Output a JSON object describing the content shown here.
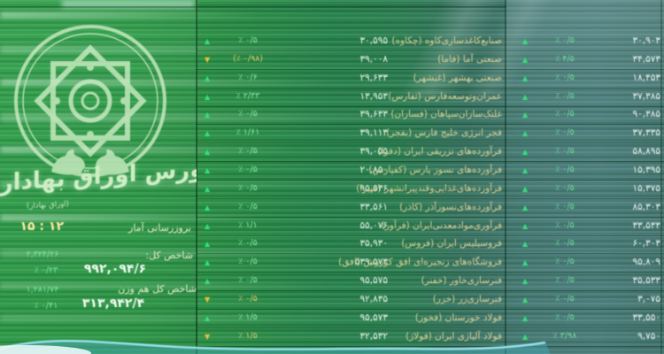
{
  "brand": {
    "title": "بورس اوراق بهادار",
    "subtitle": "(اوراق بهادار)"
  },
  "stats": {
    "update_label": "بروزرسانی آمار",
    "time": "۱۲ : ۱۵",
    "indices": [
      {
        "label": "شاخص کل:",
        "value": "۹۹۲,۰۹۴/۶",
        "change": "۲,۳۲۴/۲۶",
        "percent": "۰/۲۳ ٪"
      },
      {
        "label": "شاخص کل هم وزن",
        "value": "۳۱۳,۹۴۲/۴",
        "change": "۱,۲۸۱/۷۴",
        "percent": "۰/۴۱ ٪"
      }
    ]
  },
  "icons": {
    "up": "▲",
    "down": "▼"
  },
  "colors": {
    "up_green": "#35e07c",
    "down_amber": "#e8c23c",
    "board_green": "#2b8f46",
    "board_teal": "#477a74",
    "index_change_green": "#7de8a2",
    "time_yellow": "#ffeaa0",
    "name_text": "#d9cf96",
    "wave_cyan": "#9ae0ea"
  },
  "table": {
    "rows": [
      {
        "name": "صنایع‌کاغذسازی‌کاوه (چکاوه)",
        "left": {
          "dir": "up",
          "percent": "۰/۵ ٪",
          "price": "۳۰,۵۹۵"
        },
        "right": {
          "dir": "up",
          "percent": "۰/۵ ٪",
          "price": "۳۰,۹۰۳"
        }
      },
      {
        "name": "صنعتی آما (فاما)",
        "left": {
          "dir": "down",
          "percent": "(۰/۹۸ ٪)",
          "price": "۳۹,۰۰۸"
        },
        "right": {
          "dir": "up",
          "percent": "۴/۵ ٪",
          "price": "۳۴,۵۷۳"
        }
      },
      {
        "name": "صنعتی بهشهر (غبشهر)",
        "left": {
          "dir": "up",
          "percent": "۰/۶ ٪",
          "price": "۲۹,۶۳۳"
        },
        "right": {
          "dir": "up",
          "percent": "۰/۵ ٪",
          "price": "۱۸,۴۵۳"
        }
      },
      {
        "name": "عمران‌وتوسعه‌فارس (ثفارس)",
        "left": {
          "dir": "up",
          "percent": "۲/۳۳ ٪",
          "price": "۱۳,۹۵۳"
        },
        "right": {
          "dir": "up",
          "percent": "۰/۵ ٪",
          "price": "۳۷,۳۸۵"
        }
      },
      {
        "name": "غلتک‌سازان‌سپاهان (فسازان)",
        "left": {
          "dir": "up",
          "percent": "۰/۵ ٪",
          "price": "۳۹,۶۳۳"
        },
        "right": {
          "dir": "up",
          "percent": "۰/۵ ٪",
          "price": "۹۰,۳۸۵"
        }
      },
      {
        "name": "فجر انرژی خلیج فارس (بفجر)",
        "left": {
          "dir": "up",
          "percent": "۱/۶۱ ٪",
          "price": "۳۹,۱۱۳"
        },
        "right": {
          "dir": "up",
          "percent": "۰/۵ ٪",
          "price": "۳۷,۳۳۵"
        }
      },
      {
        "name": "فرآورده‌های تزریقی ایران (دفرا)",
        "left": {
          "dir": "up",
          "percent": "۰/۵ ٪",
          "price": "۳۹,۰۵۵"
        },
        "right": {
          "dir": "up",
          "percent": "۰/۵ ٪",
          "price": "۵۸,۸۹۵"
        }
      },
      {
        "name": "فرآورده‌های نسوز پارس (کفپارس)",
        "left": {
          "dir": "up",
          "percent": "۰/۵ ٪",
          "price": "۲۰,۸۵۰"
        },
        "right": {
          "dir": "up",
          "percent": "۰/۵ ٪",
          "price": "۱۵,۳۹۵"
        }
      },
      {
        "name": "فرآورده‌های‌غذایی‌وقندپیرانشهر (قپیرا)",
        "left": {
          "dir": "up",
          "percent": "۰/۵ ٪",
          "price": "۹۵,۵۳۶"
        },
        "right": {
          "dir": "up",
          "percent": "۰/۵ ٪",
          "price": "۱۵,۳۷۵"
        }
      },
      {
        "name": "فرآورده‌های‌نسوزآذر (کاذر)",
        "left": {
          "dir": "up",
          "percent": "۰/۵ ٪",
          "price": "۳۳,۵۶۱"
        },
        "right": {
          "dir": "up",
          "percent": "۰/۵ ٪",
          "price": "۸۵,۳۰۳"
        }
      },
      {
        "name": "فرآوری‌موادمعدنی‌ایران (فرآور)",
        "left": {
          "dir": "up",
          "percent": "۱/۱ ٪",
          "price": "۵۵,۰۷۶"
        },
        "right": {
          "dir": "up",
          "percent": "۰/۵ ٪",
          "price": "۳۳,۵۳۳"
        }
      },
      {
        "name": "فروسیلیس ایران (فروس)",
        "left": {
          "dir": "up",
          "percent": "۰/۵ ٪",
          "price": "۳۵,۹۳۰"
        },
        "right": {
          "dir": "up",
          "percent": "۰/۵ ٪",
          "price": "۶۰,۳۰۳"
        }
      },
      {
        "name": "فروشگاه‌های زنجیره‌ای افق کوروش (افق)",
        "left": {
          "dir": "up",
          "percent": "۰/۵ ٪",
          "price": "۵۳۹,۵۷۳"
        },
        "right": {
          "dir": "up",
          "percent": "۰/۵ ٪",
          "price": "۹۵,۸۰۹"
        }
      },
      {
        "name": "فنرسازی‌خاور (خفنر)",
        "left": {
          "dir": "up",
          "percent": "۰/۵ ٪",
          "price": "۹۵,۵۷۵"
        },
        "right": {
          "dir": "up",
          "percent": "۰/۵ ٪",
          "price": "۳۵,۵۳۳"
        }
      },
      {
        "name": "فنرسازی‌زر (خزر)",
        "left": {
          "dir": "down",
          "percent": "۰/۵ ٪",
          "price": "۹۲,۸۳۵"
        },
        "right": {
          "dir": "up",
          "percent": "۰/۵ ٪",
          "price": "۳,۰۷۵"
        }
      },
      {
        "name": "فولاد خوزستان (فخوز)",
        "left": {
          "dir": "up",
          "percent": "۱/۵ ٪",
          "price": "۹۵,۵۷۳"
        },
        "right": {
          "dir": "up",
          "percent": "۰/۵ ٪",
          "price": "۳۳,۵۵۰"
        }
      },
      {
        "name": "فولاد آلیاژی ایران (فولاژ)",
        "left": {
          "dir": "down",
          "percent": "۱/۵ ٪",
          "price": "۳۲,۵۳۲"
        },
        "right": {
          "dir": "up",
          "percent": "۳/۹۸ ٪",
          "price": "۹,۷۵۰"
        }
      }
    ]
  }
}
